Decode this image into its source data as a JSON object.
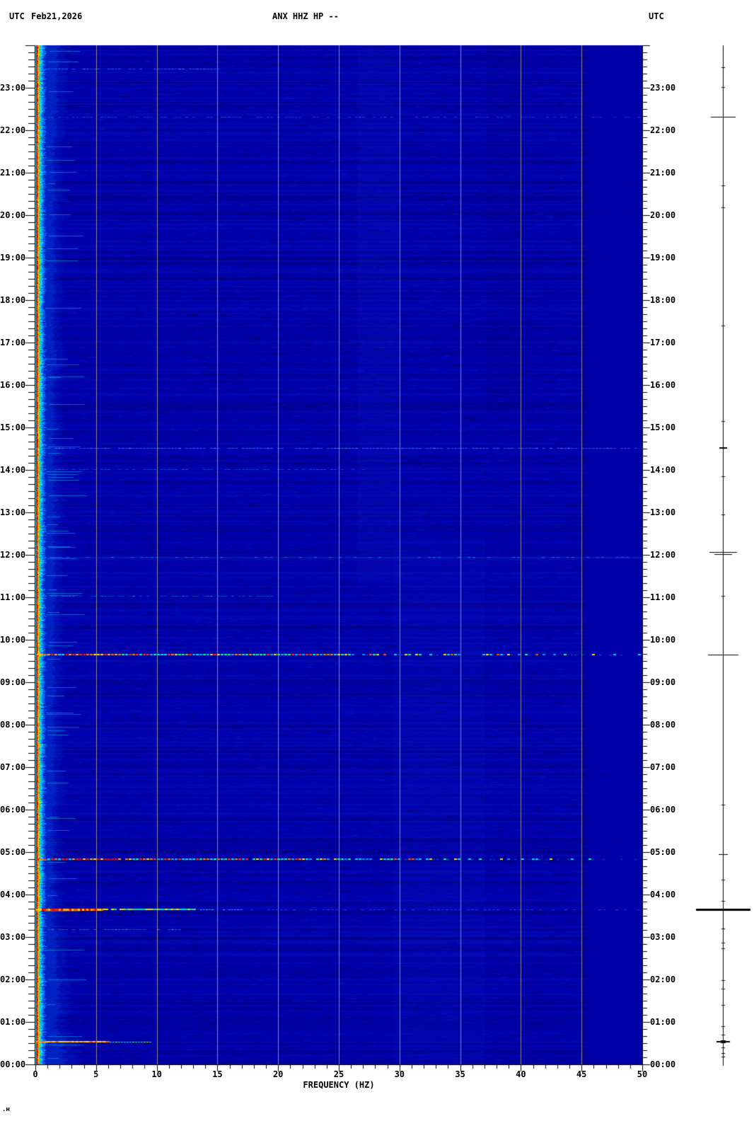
{
  "header": {
    "tz_left": "UTC",
    "date": "Feb21,2026",
    "title": "ANX HHZ HP --",
    "tz_right": "UTC"
  },
  "x_axis": {
    "title": "FREQUENCY (HZ)",
    "min_hz": 0,
    "max_hz": 50,
    "major_tick_step_hz": 5,
    "minor_tick_step_hz": 1,
    "ticks": [
      {
        "v": 0,
        "label": "0"
      },
      {
        "v": 5,
        "label": "5"
      },
      {
        "v": 10,
        "label": "10"
      },
      {
        "v": 15,
        "label": "15"
      },
      {
        "v": 20,
        "label": "20"
      },
      {
        "v": 25,
        "label": "25"
      },
      {
        "v": 30,
        "label": "30"
      },
      {
        "v": 35,
        "label": "35"
      },
      {
        "v": 40,
        "label": "40"
      },
      {
        "v": 45,
        "label": "45"
      },
      {
        "v": 50,
        "label": "50"
      }
    ]
  },
  "y_axis": {
    "unit": "UTC",
    "minor_tick_minutes": 10,
    "left_labels": [
      "23:00",
      "22:00",
      "21:00",
      "20:00",
      "19:00",
      "18:00",
      "17:00",
      "16:00",
      "15:00",
      "14:00",
      "13:00",
      "12:00",
      "11:00",
      "10:00",
      "09:00",
      "08:00",
      "07:00",
      "06:00",
      "05:00",
      "04:00",
      "03:00",
      "02:00",
      "01:00",
      "00:00"
    ],
    "right_labels": [
      "23:00",
      "22:00",
      "21:00",
      "20:00",
      "19:00",
      "18:00",
      "17:00",
      "16:00",
      "15:00",
      "14:00",
      "13:00",
      "12:00",
      "11:00",
      "10:00",
      "09:00",
      "08:00",
      "07:00",
      "06:00",
      "05:00",
      "04:00",
      "03:00",
      "02:00",
      "01:00",
      "00:00"
    ]
  },
  "corner_mark": ".ʜ",
  "chart_data": {
    "type": "heatmap",
    "subtype": "24-hour seismic spectrogram",
    "title": "ANX HHZ HP --",
    "station": "ANX",
    "channel": "HHZ",
    "filter": "HP",
    "date": "Feb21,2026",
    "timezone": "UTC",
    "xlabel": "FREQUENCY (HZ)",
    "x_range_hz": [
      0,
      50
    ],
    "y_range_hours": [
      0,
      24
    ],
    "colormap": "jet",
    "background_color": "#0000a6",
    "grid_color": "#8a8a8a",
    "grid_lines_hz": [
      5,
      10,
      15,
      20,
      25,
      30,
      35,
      40,
      45
    ],
    "continuous_signal": {
      "description": "persistent low-frequency band at plot left edge, 0 to ~1.5 Hz",
      "freq_extent_hz": 1.5,
      "core_color": "#ff0000",
      "halo_colors": [
        "#ffe000",
        "#38d048",
        "#00e0f0",
        "#0080ff"
      ]
    },
    "events": [
      {
        "t": 23.45,
        "time_utc": "23:27",
        "hz": 15,
        "intensity": "faint",
        "style": "cyan",
        "a": 0.6,
        "p": 0.7,
        "th": 1
      },
      {
        "t": 22.32,
        "time_utc": "22:19",
        "hz": 50,
        "intensity": "very faint",
        "style": "cyan",
        "a": 0.38,
        "p": 0.55,
        "th": 1
      },
      {
        "t": 14.52,
        "time_utc": "14:31",
        "hz": 50,
        "intensity": "faint",
        "style": "cyan",
        "a": 0.65,
        "p": 0.8,
        "th": 1
      },
      {
        "t": 14.02,
        "time_utc": "14:01",
        "hz": 27,
        "intensity": "very faint",
        "style": "cyan",
        "a": 0.4,
        "p": 0.55,
        "th": 1
      },
      {
        "t": 11.95,
        "time_utc": "11:57",
        "hz": 50,
        "intensity": "very faint",
        "style": "blue",
        "a": 0.32,
        "p": 0.7,
        "th": 2
      },
      {
        "t": 11.03,
        "time_utc": "11:02",
        "hz": 20,
        "intensity": "very faint",
        "style": "cyan",
        "a": 0.45,
        "p": 0.6,
        "th": 1
      },
      {
        "t": 9.65,
        "time_utc": "09:39",
        "hz": 50,
        "intensity": "strong",
        "style": "multi",
        "a": 0.95,
        "p": 1.0,
        "th": 2
      },
      {
        "t": 4.83,
        "time_utc": "04:50",
        "hz": 50,
        "intensity": "strong",
        "style": "multi",
        "a": 0.9,
        "p": 0.92,
        "th": 2
      },
      {
        "t": 3.65,
        "time_utc": "03:39",
        "hz": 50,
        "intensity": "very strong",
        "style": "strong",
        "a": 1.0,
        "p": 1.0,
        "th": 3
      },
      {
        "t": 3.18,
        "time_utc": "03:11",
        "hz": 12,
        "intensity": "faint",
        "style": "cyan",
        "a": 0.6,
        "p": 0.75,
        "th": 1
      },
      {
        "t": 0.53,
        "time_utc": "00:32",
        "hz": 9.5,
        "intensity": "strong",
        "style": "orange",
        "a": 1.0,
        "p": 1.0,
        "th": 2
      }
    ],
    "side_panel": {
      "description": "event-amplitude stick plot at right margin",
      "marks": [
        {
          "t": 22.32,
          "hw": 17,
          "th": 1
        },
        {
          "t": 14.52,
          "hw": 5,
          "th": 2
        },
        {
          "t": 12.07,
          "hw": 19,
          "th": 1
        },
        {
          "t": 12.02,
          "hw": 12,
          "th": 1
        },
        {
          "t": 9.65,
          "hw": 21,
          "th": 1
        },
        {
          "t": 4.95,
          "hw": 6,
          "th": 1
        },
        {
          "t": 3.65,
          "hw": 38,
          "th": 3
        },
        {
          "t": 0.53,
          "hw": 9,
          "th": 2
        },
        {
          "t": 0.53,
          "hw": 3,
          "th": 4
        },
        {
          "t": 23.48,
          "hw": 2,
          "th": 1
        },
        {
          "t": 23.02,
          "hw": 2,
          "th": 1
        },
        {
          "t": 20.7,
          "hw": 2,
          "th": 1
        },
        {
          "t": 20.18,
          "hw": 2,
          "th": 1
        },
        {
          "t": 17.4,
          "hw": 2,
          "th": 1
        },
        {
          "t": 15.15,
          "hw": 2,
          "th": 1
        },
        {
          "t": 13.85,
          "hw": 2,
          "th": 1
        },
        {
          "t": 12.95,
          "hw": 2,
          "th": 1
        },
        {
          "t": 11.03,
          "hw": 2,
          "th": 1
        },
        {
          "t": 6.12,
          "hw": 2,
          "th": 1
        },
        {
          "t": 4.35,
          "hw": 2,
          "th": 1
        },
        {
          "t": 3.85,
          "hw": 2,
          "th": 1
        },
        {
          "t": 3.2,
          "hw": 2,
          "th": 1
        },
        {
          "t": 2.87,
          "hw": 2,
          "th": 1
        },
        {
          "t": 2.73,
          "hw": 2,
          "th": 1
        },
        {
          "t": 1.98,
          "hw": 2,
          "th": 1
        },
        {
          "t": 1.78,
          "hw": 2,
          "th": 1
        },
        {
          "t": 1.4,
          "hw": 2,
          "th": 1
        },
        {
          "t": 0.9,
          "hw": 2,
          "th": 1
        },
        {
          "t": 0.7,
          "hw": 2,
          "th": 1
        },
        {
          "t": 0.4,
          "hw": 2,
          "th": 1
        },
        {
          "t": 0.27,
          "hw": 2,
          "th": 1
        },
        {
          "t": 0.18,
          "hw": 2,
          "th": 1
        }
      ]
    }
  }
}
